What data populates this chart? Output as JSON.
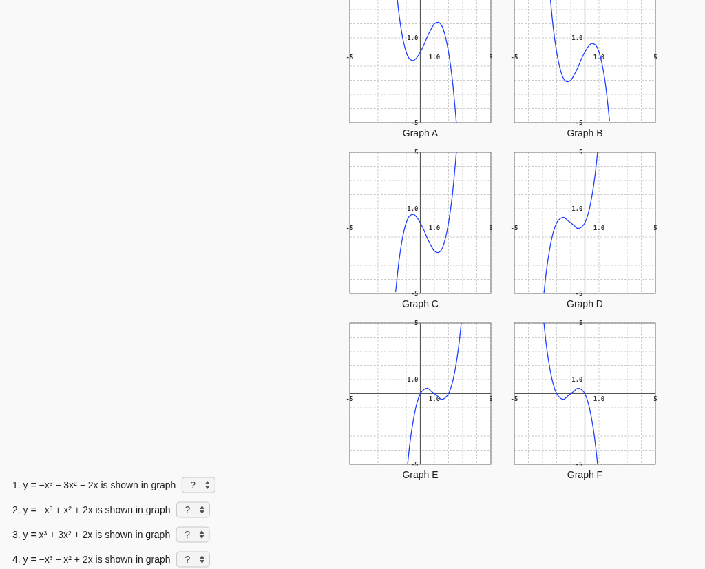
{
  "chart_data": [
    {
      "type": "line",
      "title": "Graph A",
      "xlim": [
        -5,
        5
      ],
      "ylim": [
        -5,
        5
      ],
      "grid": true,
      "marker": "none",
      "line_style": "solid",
      "xticks": [
        {
          "value": -5,
          "label": "-5"
        },
        {
          "value": -4,
          "label": null
        },
        {
          "value": -3,
          "label": null
        },
        {
          "value": -2,
          "label": null
        },
        {
          "value": -1,
          "label": null
        },
        {
          "value": 0,
          "label": null
        },
        {
          "value": 1,
          "label": "1.0"
        },
        {
          "value": 2,
          "label": null
        },
        {
          "value": 3,
          "label": null
        },
        {
          "value": 4,
          "label": null
        },
        {
          "value": 5,
          "label": "5"
        }
      ],
      "yticks": [
        {
          "value": -5,
          "label": "-5"
        },
        {
          "value": -4,
          "label": null
        },
        {
          "value": -3,
          "label": null
        },
        {
          "value": -2,
          "label": null
        },
        {
          "value": -1,
          "label": null
        },
        {
          "value": 0,
          "label": null
        },
        {
          "value": 1,
          "label": "1.0"
        },
        {
          "value": 2,
          "label": null
        },
        {
          "value": 3,
          "label": null
        }
      ],
      "series": [
        {
          "color": "#1f3fff",
          "x": [
            -1.75,
            -1.5,
            -1.25,
            -1,
            -0.75,
            -0.5,
            -0.25,
            0,
            0.25,
            0.5,
            0.75,
            1,
            1.25,
            1.5,
            1.75,
            2,
            2.25,
            2.5,
            2.55
          ],
          "values": [
            4.9,
            2.6,
            1.0,
            0,
            -0.5,
            -0.6,
            -0.4,
            0,
            0.5,
            1.1,
            1.6,
            2.0,
            2.1,
            1.9,
            1.2,
            0,
            -1.8,
            -4.4,
            -5.0
          ]
        }
      ]
    },
    {
      "type": "line",
      "title": "Graph B",
      "xlim": [
        -5,
        5
      ],
      "ylim": [
        -5,
        5
      ],
      "grid": true,
      "marker": "none",
      "line_style": "solid",
      "xticks": [
        {
          "value": -5,
          "label": "-5"
        },
        {
          "value": -4,
          "label": null
        },
        {
          "value": -3,
          "label": null
        },
        {
          "value": -2,
          "label": null
        },
        {
          "value": -1,
          "label": null
        },
        {
          "value": 0,
          "label": null
        },
        {
          "value": 1,
          "label": "1.0"
        },
        {
          "value": 2,
          "label": null
        },
        {
          "value": 3,
          "label": null
        },
        {
          "value": 4,
          "label": null
        },
        {
          "value": 5,
          "label": "5"
        }
      ],
      "yticks": [
        {
          "value": -5,
          "label": "-5"
        },
        {
          "value": -4,
          "label": null
        },
        {
          "value": -3,
          "label": null
        },
        {
          "value": -2,
          "label": null
        },
        {
          "value": -1,
          "label": null
        },
        {
          "value": 0,
          "label": null
        },
        {
          "value": 1,
          "label": "1.0"
        },
        {
          "value": 2,
          "label": null
        },
        {
          "value": 3,
          "label": null
        }
      ],
      "series": [
        {
          "color": "#1f3fff",
          "x": [
            -2.55,
            -2.25,
            -2,
            -1.75,
            -1.5,
            -1.25,
            -1,
            -0.75,
            -0.5,
            -0.25,
            0,
            0.25,
            0.5,
            0.75,
            1,
            1.25,
            1.5,
            1.75
          ],
          "values": [
            5.0,
            1.8,
            0,
            -1.2,
            -1.9,
            -2.1,
            -2.0,
            -1.6,
            -1.1,
            -0.5,
            0,
            0.4,
            0.6,
            0.5,
            0,
            -1.0,
            -2.6,
            -4.9
          ]
        }
      ]
    },
    {
      "type": "line",
      "title": "Graph C",
      "xlim": [
        -5,
        5
      ],
      "ylim": [
        -5,
        5
      ],
      "grid": true,
      "marker": "none",
      "line_style": "solid",
      "xticks": [
        {
          "value": -5,
          "label": "-5"
        },
        {
          "value": -4,
          "label": null
        },
        {
          "value": -3,
          "label": null
        },
        {
          "value": -2,
          "label": null
        },
        {
          "value": -1,
          "label": null
        },
        {
          "value": 0,
          "label": null
        },
        {
          "value": 1,
          "label": "1.0"
        },
        {
          "value": 2,
          "label": null
        },
        {
          "value": 3,
          "label": null
        },
        {
          "value": 4,
          "label": null
        },
        {
          "value": 5,
          "label": "5"
        }
      ],
      "yticks": [
        {
          "value": -5,
          "label": "-5"
        },
        {
          "value": -4,
          "label": null
        },
        {
          "value": -3,
          "label": null
        },
        {
          "value": -2,
          "label": null
        },
        {
          "value": -1,
          "label": null
        },
        {
          "value": 0,
          "label": null
        },
        {
          "value": 1,
          "label": "1.0"
        },
        {
          "value": 2,
          "label": null
        },
        {
          "value": 3,
          "label": null
        },
        {
          "value": 4,
          "label": null
        },
        {
          "value": 5,
          "label": "5"
        }
      ],
      "series": [
        {
          "color": "#1f3fff",
          "x": [
            -1.75,
            -1.5,
            -1.25,
            -1,
            -0.75,
            -0.5,
            -0.25,
            0,
            0.25,
            0.5,
            0.75,
            1,
            1.25,
            1.5,
            1.75,
            2,
            2.25,
            2.5,
            2.55
          ],
          "values": [
            -4.9,
            -2.6,
            -1.0,
            0,
            0.5,
            0.6,
            0.4,
            0,
            -0.5,
            -1.1,
            -1.6,
            -2.0,
            -2.1,
            -1.9,
            -1.2,
            0,
            1.8,
            4.4,
            5.0
          ]
        }
      ]
    },
    {
      "type": "line",
      "title": "Graph D",
      "xlim": [
        -5,
        5
      ],
      "ylim": [
        -5,
        5
      ],
      "grid": true,
      "marker": "none",
      "line_style": "solid",
      "xticks": [
        {
          "value": -5,
          "label": "-5"
        },
        {
          "value": -4,
          "label": null
        },
        {
          "value": -3,
          "label": null
        },
        {
          "value": -2,
          "label": null
        },
        {
          "value": -1,
          "label": null
        },
        {
          "value": 0,
          "label": null
        },
        {
          "value": 1,
          "label": "1.0"
        },
        {
          "value": 2,
          "label": null
        },
        {
          "value": 3,
          "label": null
        },
        {
          "value": 4,
          "label": null
        },
        {
          "value": 5,
          "label": "5"
        }
      ],
      "yticks": [
        {
          "value": -5,
          "label": "-5"
        },
        {
          "value": -4,
          "label": null
        },
        {
          "value": -3,
          "label": null
        },
        {
          "value": -2,
          "label": null
        },
        {
          "value": -1,
          "label": null
        },
        {
          "value": 0,
          "label": null
        },
        {
          "value": 1,
          "label": "1.0"
        },
        {
          "value": 2,
          "label": null
        },
        {
          "value": 3,
          "label": null
        },
        {
          "value": 4,
          "label": null
        },
        {
          "value": 5,
          "label": "5"
        }
      ],
      "series": [
        {
          "color": "#1f3fff",
          "x": [
            -2.9,
            -2.75,
            -2.5,
            -2.25,
            -2,
            -1.75,
            -1.5,
            -1.25,
            -1,
            -0.75,
            -0.5,
            -0.25,
            0,
            0.25,
            0.5,
            0.75,
            0.9
          ],
          "values": [
            -5.0,
            -3.6,
            -1.9,
            -0.7,
            0,
            0.3,
            0.4,
            0.2,
            0,
            -0.2,
            -0.4,
            -0.3,
            0,
            0.7,
            1.9,
            3.6,
            5.0
          ]
        }
      ]
    },
    {
      "type": "line",
      "title": "Graph E",
      "xlim": [
        -5,
        5
      ],
      "ylim": [
        -5,
        5
      ],
      "grid": true,
      "marker": "none",
      "line_style": "solid",
      "xticks": [
        {
          "value": -5,
          "label": "-5"
        },
        {
          "value": -4,
          "label": null
        },
        {
          "value": -3,
          "label": null
        },
        {
          "value": -2,
          "label": null
        },
        {
          "value": -1,
          "label": null
        },
        {
          "value": 0,
          "label": null
        },
        {
          "value": 1,
          "label": "1.0"
        },
        {
          "value": 2,
          "label": null
        },
        {
          "value": 3,
          "label": null
        },
        {
          "value": 4,
          "label": null
        },
        {
          "value": 5,
          "label": "5"
        }
      ],
      "yticks": [
        {
          "value": -5,
          "label": "-5"
        },
        {
          "value": -4,
          "label": null
        },
        {
          "value": -3,
          "label": null
        },
        {
          "value": -2,
          "label": null
        },
        {
          "value": -1,
          "label": null
        },
        {
          "value": 0,
          "label": null
        },
        {
          "value": 1,
          "label": "1.0"
        },
        {
          "value": 2,
          "label": null
        },
        {
          "value": 3,
          "label": null
        },
        {
          "value": 4,
          "label": null
        },
        {
          "value": 5,
          "label": "5"
        }
      ],
      "series": [
        {
          "color": "#1f3fff",
          "x": [
            -0.9,
            -0.75,
            -0.5,
            -0.25,
            0,
            0.25,
            0.5,
            0.75,
            1,
            1.25,
            1.5,
            1.75,
            2,
            2.25,
            2.5,
            2.75,
            2.9
          ],
          "values": [
            -5.0,
            -3.6,
            -1.9,
            -0.7,
            0,
            0.3,
            0.4,
            0.2,
            0,
            -0.2,
            -0.4,
            -0.3,
            0,
            0.7,
            1.9,
            3.6,
            5.0
          ]
        }
      ]
    },
    {
      "type": "line",
      "title": "Graph F",
      "xlim": [
        -5,
        5
      ],
      "ylim": [
        -5,
        5
      ],
      "grid": true,
      "marker": "none",
      "line_style": "solid",
      "xticks": [
        {
          "value": -5,
          "label": "-5"
        },
        {
          "value": -4,
          "label": null
        },
        {
          "value": -3,
          "label": null
        },
        {
          "value": -2,
          "label": null
        },
        {
          "value": -1,
          "label": null
        },
        {
          "value": 0,
          "label": null
        },
        {
          "value": 1,
          "label": "1.0"
        },
        {
          "value": 2,
          "label": null
        },
        {
          "value": 3,
          "label": null
        },
        {
          "value": 4,
          "label": null
        },
        {
          "value": 5,
          "label": "5"
        }
      ],
      "yticks": [
        {
          "value": -5,
          "label": "-5"
        },
        {
          "value": -4,
          "label": null
        },
        {
          "value": -3,
          "label": null
        },
        {
          "value": -2,
          "label": null
        },
        {
          "value": -1,
          "label": null
        },
        {
          "value": 0,
          "label": null
        },
        {
          "value": 1,
          "label": "1.0"
        },
        {
          "value": 2,
          "label": null
        },
        {
          "value": 3,
          "label": null
        },
        {
          "value": 4,
          "label": null
        },
        {
          "value": 5,
          "label": "5"
        }
      ],
      "series": [
        {
          "color": "#1f3fff",
          "x": [
            -2.9,
            -2.75,
            -2.5,
            -2.25,
            -2,
            -1.75,
            -1.5,
            -1.25,
            -1,
            -0.75,
            -0.5,
            -0.25,
            0,
            0.25,
            0.5,
            0.75,
            0.9
          ],
          "values": [
            5.0,
            3.6,
            1.9,
            0.7,
            0,
            -0.3,
            -0.4,
            -0.2,
            0,
            0.2,
            0.4,
            0.3,
            0,
            -0.7,
            -1.9,
            -3.6,
            -5.0
          ]
        }
      ]
    },
    {
      "type": "other",
      "annotations": [
        "1.  y = −x³ − 3x² − 2x is shown in graph",
        "?",
        "2.  y = −x³ + x² + 2x is shown in graph",
        "?",
        "3.  y = x³ + 3x² + 2x is shown in graph",
        "?",
        "4.  y = −x³ − x² + 2x is shown in graph",
        "?"
      ]
    }
  ]
}
